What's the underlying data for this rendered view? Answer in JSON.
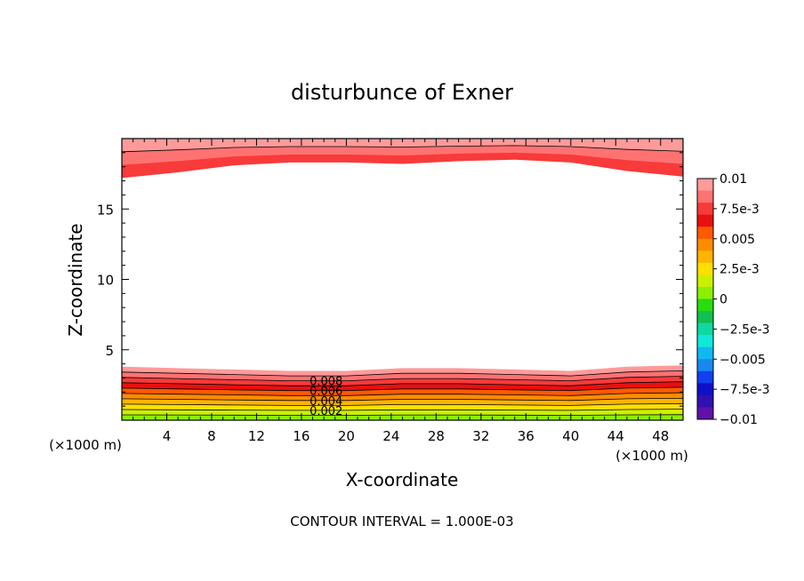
{
  "chart_data": {
    "type": "heatmap",
    "title": "disturbunce of Exner",
    "xlabel": "X-coordinate",
    "ylabel": "Z-coordinate",
    "x_unit_left": "(×1000 m)",
    "x_unit_right": "(×1000 m)",
    "xlim": [
      0,
      50
    ],
    "ylim": [
      0,
      20
    ],
    "x_ticks": [
      4,
      8,
      12,
      16,
      20,
      24,
      28,
      32,
      36,
      40,
      44,
      48
    ],
    "y_ticks": [
      5,
      10,
      15
    ],
    "colorbar": {
      "min": -0.01,
      "max": 0.01,
      "labels": [
        "0.01",
        "7.5e-3",
        "0.005",
        "2.5e-3",
        "0",
        "−2.5e-3",
        "−0.005",
        "−7.5e-3",
        "−0.01"
      ],
      "colors": [
        "#ff9a9a",
        "#ff7272",
        "#f83a3a",
        "#e81010",
        "#ff5a00",
        "#ff8c00",
        "#ffb400",
        "#ffe000",
        "#ccf000",
        "#8cf000",
        "#28dc10",
        "#10c050",
        "#10d8a0",
        "#10e8d8",
        "#10b8f0",
        "#1888f0",
        "#1040f0",
        "#1010c8",
        "#3010b0",
        "#6010a8"
      ]
    },
    "contour_labels": [
      "0.008",
      "0.006",
      "0.004",
      "0.002"
    ],
    "contour_label_values": [
      0.008,
      0.006,
      0.004,
      0.002
    ],
    "contour_interval": "CONTOUR INTERVAL = 1.000E-03",
    "bottom_band": {
      "x": [
        0,
        5,
        10,
        15,
        20,
        25,
        30,
        35,
        40,
        45,
        50
      ],
      "top_boundary_z": [
        3.8,
        3.7,
        3.6,
        3.5,
        3.5,
        3.7,
        3.7,
        3.6,
        3.5,
        3.8,
        3.9
      ],
      "levels": [
        0.01,
        0.009,
        0.008,
        0.007,
        0.006,
        0.005,
        0.004,
        0.003,
        0.002,
        0.001
      ]
    },
    "top_band": {
      "x": [
        0,
        5,
        10,
        15,
        20,
        25,
        30,
        35,
        40,
        45,
        50
      ],
      "bottom_boundary_z": [
        17.2,
        17.6,
        18.1,
        18.3,
        18.3,
        18.2,
        18.4,
        18.5,
        18.3,
        17.7,
        17.3
      ],
      "levels": [
        0.01,
        0.009,
        0.008
      ]
    }
  }
}
